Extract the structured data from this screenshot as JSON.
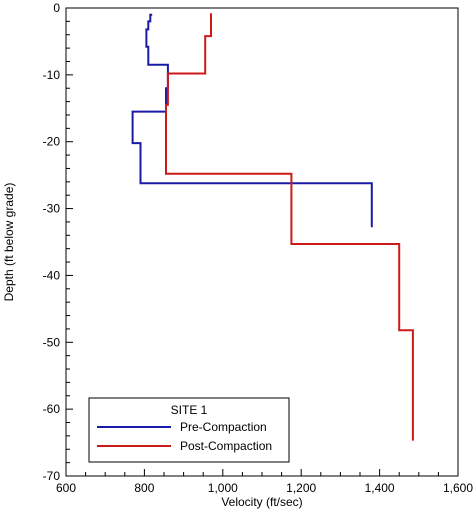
{
  "chart_data": {
    "type": "line",
    "title": "",
    "xlabel": "Velocity (ft/sec)",
    "ylabel": "Depth (ft below grade)",
    "xlim": [
      600,
      1600
    ],
    "ylim": [
      -70,
      0
    ],
    "x_ticks": [
      600,
      800,
      1000,
      1200,
      1400,
      1600
    ],
    "x_tick_labels": [
      "600",
      "800",
      "1,000",
      "1,200",
      "1,400",
      "1,600"
    ],
    "y_ticks": [
      0,
      -10,
      -20,
      -30,
      -40,
      -50,
      -60,
      -70
    ],
    "y_tick_labels": [
      "0",
      "-10",
      "-20",
      "-30",
      "-40",
      "-50",
      "-60",
      "-70"
    ],
    "grid": false,
    "legend": {
      "title": "SITE 1",
      "placement": "bottom-left"
    },
    "series": [
      {
        "name": "Pre-Compaction",
        "color": "#1a1aa8",
        "points": [
          [
            820,
            -1
          ],
          [
            815,
            -1
          ],
          [
            815,
            -2
          ],
          [
            810,
            -2
          ],
          [
            810,
            -3.2
          ],
          [
            805,
            -3.2
          ],
          [
            805,
            -5.8
          ],
          [
            810,
            -5.8
          ],
          [
            810,
            -8.5
          ],
          [
            860,
            -8.5
          ],
          [
            860,
            -12
          ],
          [
            855,
            -12
          ],
          [
            855,
            -15.5
          ],
          [
            770,
            -15.5
          ],
          [
            770,
            -20.2
          ],
          [
            790,
            -20.2
          ],
          [
            790,
            -26.2
          ],
          [
            1380,
            -26.2
          ],
          [
            1380,
            -32.8
          ]
        ]
      },
      {
        "name": "Post-Compaction",
        "color": "#cc1a1a",
        "points": [
          [
            970,
            -0.8
          ],
          [
            970,
            -4.2
          ],
          [
            955,
            -4.2
          ],
          [
            955,
            -9.8
          ],
          [
            860,
            -9.8
          ],
          [
            860,
            -14.5
          ],
          [
            855,
            -14.5
          ],
          [
            855,
            -24.8
          ],
          [
            1175,
            -24.8
          ],
          [
            1175,
            -35.3
          ],
          [
            1450,
            -35.3
          ],
          [
            1450,
            -48.2
          ],
          [
            1485,
            -48.2
          ],
          [
            1485,
            -64.7
          ]
        ]
      }
    ]
  }
}
